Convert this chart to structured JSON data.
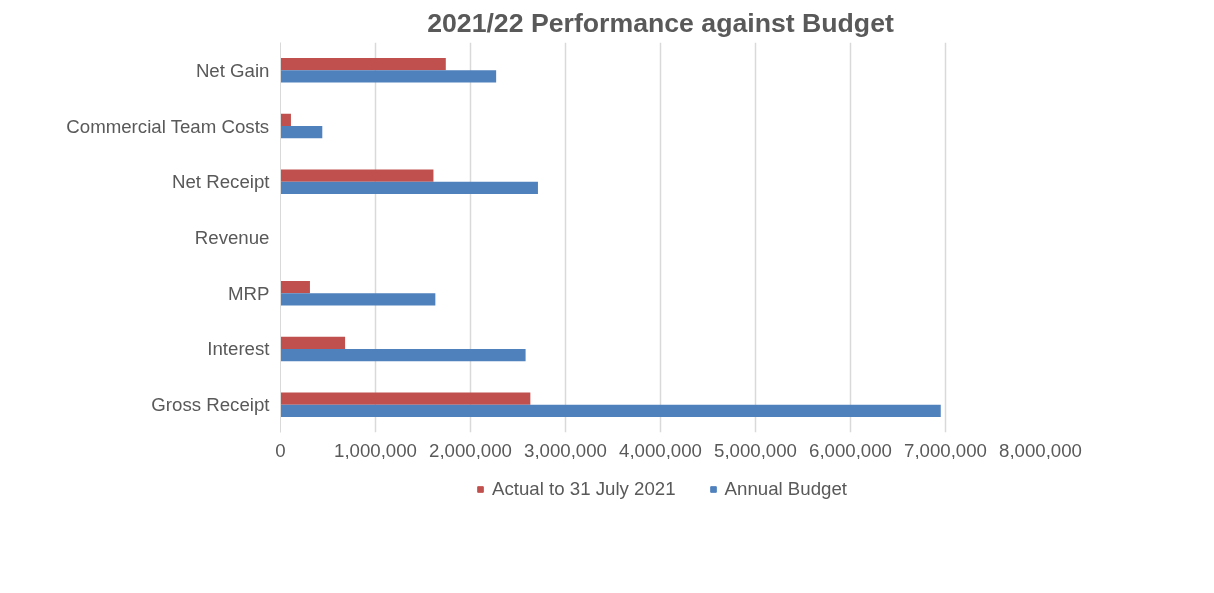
{
  "chart_data": {
    "type": "bar",
    "orientation": "horizontal",
    "title": "2021/22 Performance against Budget",
    "categories": [
      "Net Gain",
      "Commercial Team Costs",
      "Net Receipt",
      "Revenue",
      "MRP",
      "Interest",
      "Gross Receipt"
    ],
    "series": [
      {
        "name": "Actual to 31 July 2021",
        "color": "#c0504d",
        "values": [
          1740000,
          110000,
          1610000,
          0,
          310000,
          680000,
          2630000
        ]
      },
      {
        "name": "Annual Budget",
        "color": "#4f81bd",
        "values": [
          2270000,
          440000,
          2710000,
          0,
          1630000,
          2580000,
          6950000
        ]
      }
    ],
    "xlim": [
      0,
      8000000
    ],
    "xticks": [
      {
        "value": 0,
        "label": "0"
      },
      {
        "value": 1000000,
        "label": "1,000,000"
      },
      {
        "value": 2000000,
        "label": "2,000,000"
      },
      {
        "value": 3000000,
        "label": "3,000,000"
      },
      {
        "value": 4000000,
        "label": "4,000,000"
      },
      {
        "value": 5000000,
        "label": "5,000,000"
      },
      {
        "value": 6000000,
        "label": "6,000,000"
      },
      {
        "value": 7000000,
        "label": "7,000,000"
      },
      {
        "value": 8000000,
        "label": "8,000,000"
      }
    ],
    "grid": "x",
    "legend": "bottom"
  }
}
